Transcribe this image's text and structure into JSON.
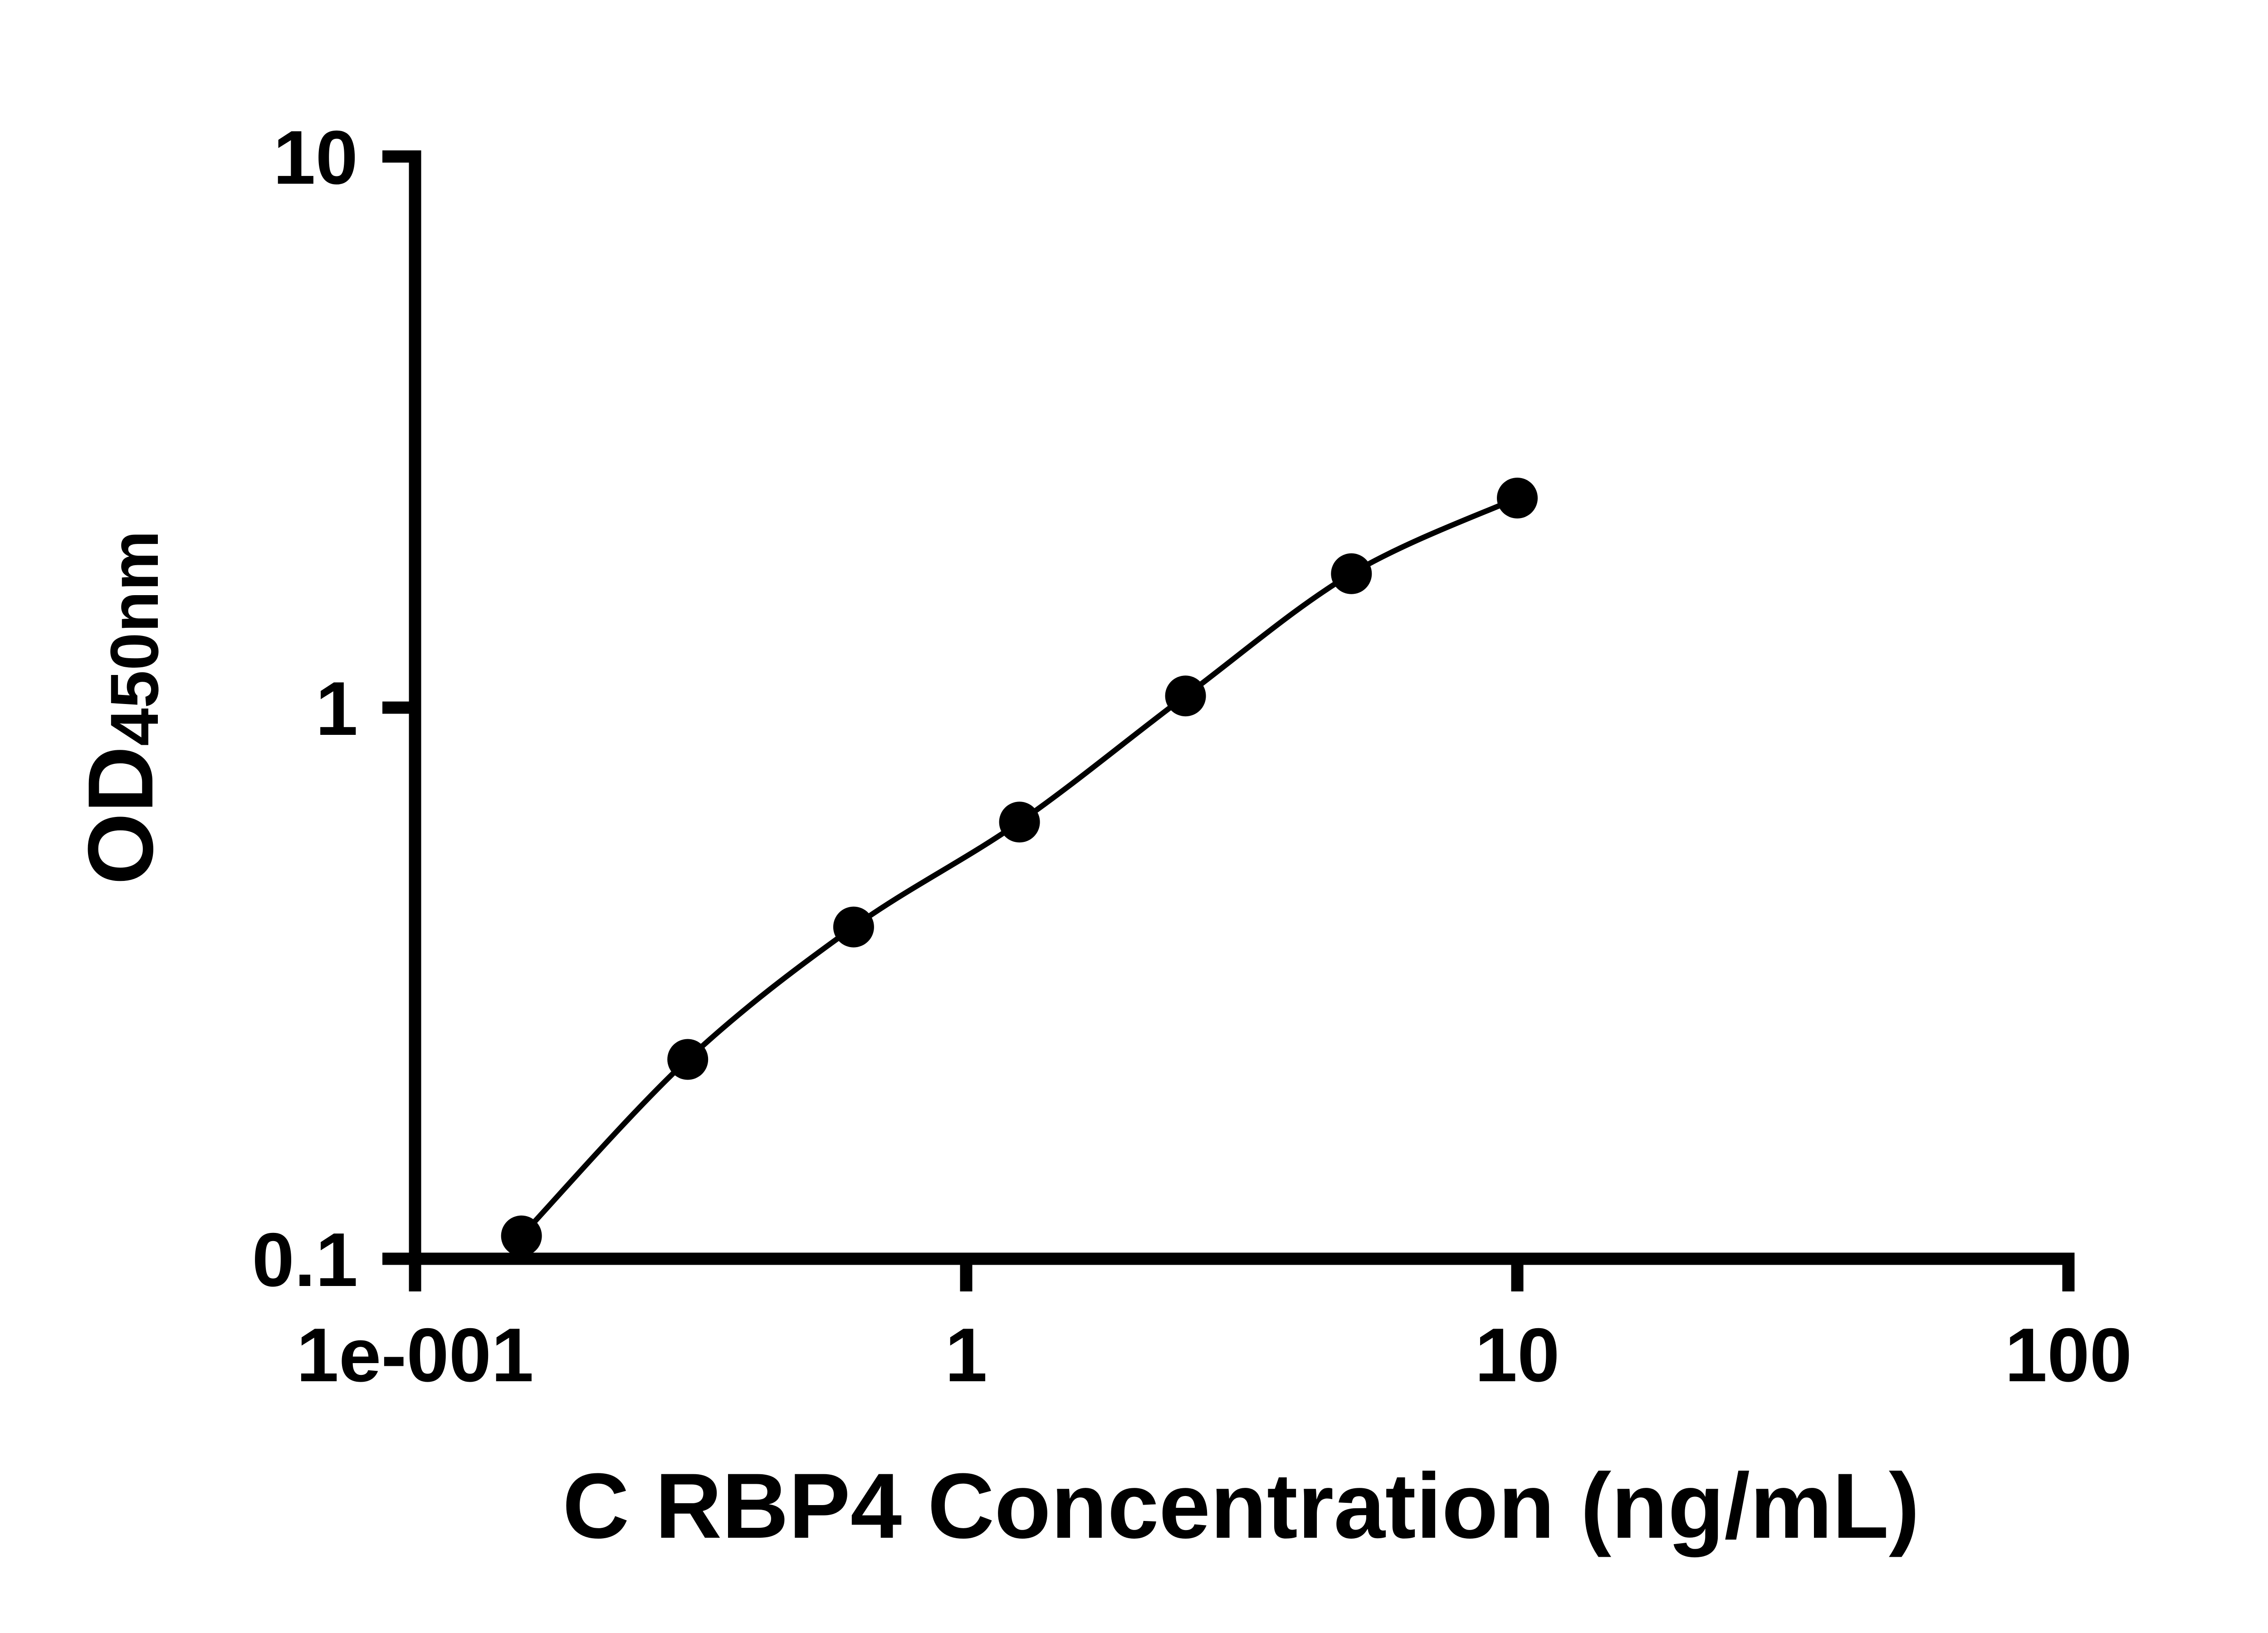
{
  "chart_data": {
    "type": "scatter",
    "title": "",
    "xlabel": "C RBP4 Concentration (ng/mL)",
    "ylabel_main": "OD",
    "ylabel_sub": "450nm",
    "x_scale": "log",
    "y_scale": "log",
    "xlim": [
      0.1,
      100
    ],
    "ylim": [
      0.1,
      10
    ],
    "grid": false,
    "legend": false,
    "x_ticks": [
      {
        "value": 0.1,
        "label": "1e-001"
      },
      {
        "value": 1,
        "label": "1"
      },
      {
        "value": 10,
        "label": "10"
      },
      {
        "value": 100,
        "label": "100"
      }
    ],
    "y_ticks": [
      {
        "value": 0.1,
        "label": "0.1"
      },
      {
        "value": 1,
        "label": "1"
      },
      {
        "value": 10,
        "label": "10"
      }
    ],
    "series": [
      {
        "x": [
          0.156,
          0.3125,
          0.625,
          1.25,
          2.5,
          5,
          10
        ],
        "y": [
          0.11,
          0.23,
          0.4,
          0.62,
          1.05,
          1.75,
          2.4
        ],
        "marker": "circle",
        "marker_color": "#000000",
        "line_color": "#000000",
        "line_style": "smooth"
      }
    ],
    "axis_color": "#000000"
  }
}
